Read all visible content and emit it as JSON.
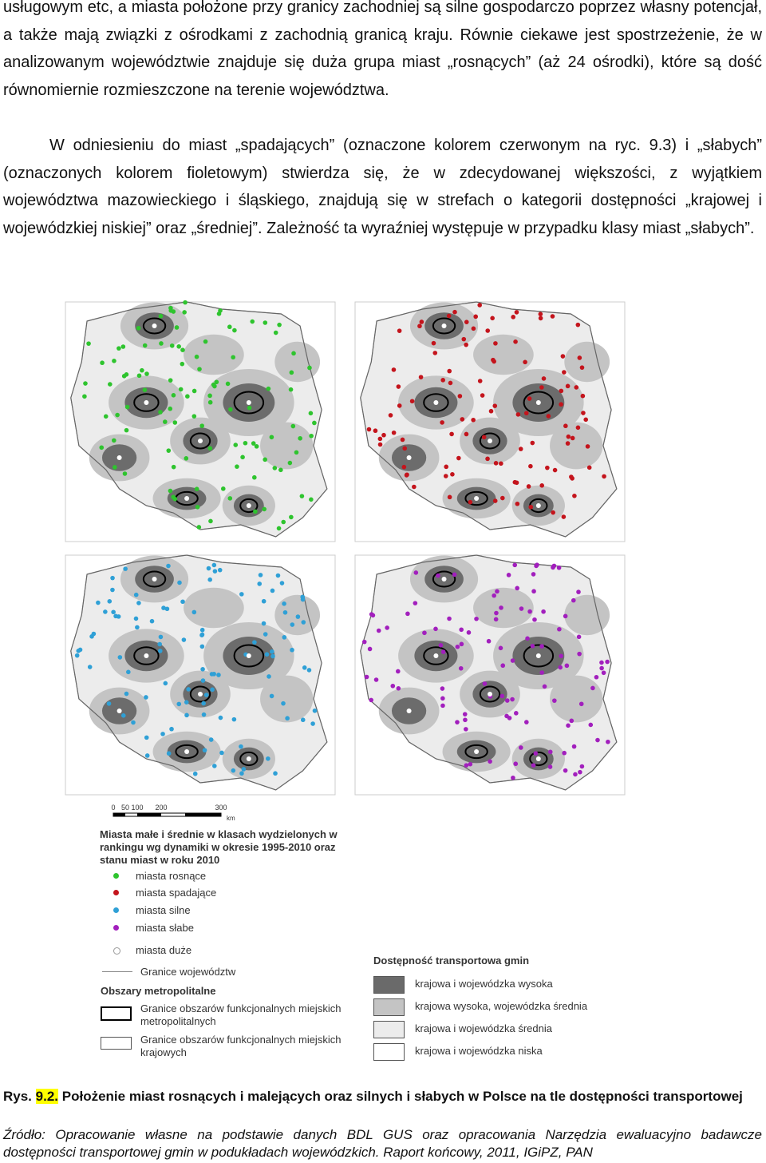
{
  "paragraphs": [
    "usługowym etc, a miasta położone przy granicy zachodniej są silne gospodarczo poprzez własny potencjał, a także mają związki z ośrodkami z zachodnią granicą kraju. Równie ciekawe jest spostrzeżenie, że w analizowanym województwie znajduje się duża grupa miast „rosnących” (aż 24 ośrodki), które są dość równomiernie rozmieszczone na terenie województwa.",
    "W odniesieniu do miast „spadających” (oznaczone kolorem czerwonym na ryc. 9.3) i „słabych” (oznaczonych kolorem fioletowym) stwierdza się, że w zdecydowanej większości, z wyjątkiem województwa mazowieckiego i śląskiego, znajdują się w strefach o kategorii dostępności „krajowej i wojewódzkiej niskiej” oraz „średniej”. Zależność ta wyraźniej występuje w przypadku klasy miast „słabych”."
  ],
  "scale_bar": {
    "labels": [
      "0",
      "50",
      "100",
      "200",
      "300"
    ],
    "unit": "km"
  },
  "legend": {
    "title": "Miasta małe i średnie w klasach wydzielonych w rankingu wg dynamiki w okresie 1995-2010 oraz stanu miast w roku 2010",
    "cities": [
      "miasta rosnące",
      "miasta spadające",
      "miasta silne",
      "miasta słabe",
      "miasta duże"
    ],
    "boundaries": "Granice województw",
    "metro_title": "Obszary metropolitalne",
    "metro": [
      "Granice obszarów funkcjonalnych miejskich metropolitalnych",
      "Granice obszarów funkcjonalnych miejskich krajowych"
    ],
    "access_title": "Dostępność transportowa gmin",
    "access": [
      "krajowa i wojewódzka wysoka",
      "krajowa wysoka, wojewódzka średnia",
      "krajowa i wojewódzka średnia",
      "krajowa i wojewódzka niska"
    ]
  },
  "caption": {
    "label": "Rys.",
    "number": "9.2.",
    "text": "Położenie miast rosnących i malejących oraz silnych i słabych w Polsce na tle dostępności transportowej",
    "source_label": "Źródło:",
    "source": "Opracowanie własne na podstawie danych BDL GUS oraz opracowania Narzędzia ewaluacyjno badawcze dostępności transportowej gmin w podukładach wojewódzkich. Raport końcowy, 2011, IGiPZ, PAN"
  }
}
